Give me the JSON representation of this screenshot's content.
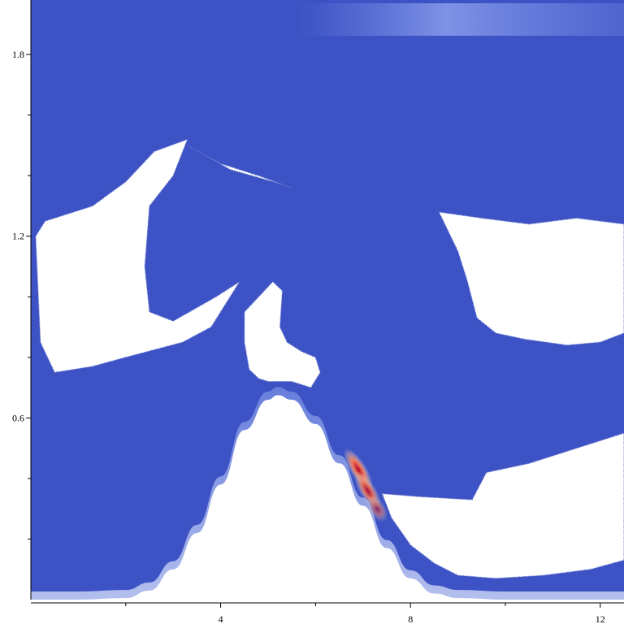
{
  "chart_data": {
    "type": "heatmap",
    "title": "",
    "xlabel": "",
    "ylabel": "",
    "xlim": [
      0.0,
      12.5
    ],
    "ylim": [
      0.0,
      1.98
    ],
    "x_ticks": [
      {
        "value": 4,
        "label": "4"
      },
      {
        "value": 8,
        "label": "8"
      },
      {
        "value": 12,
        "label": "12"
      }
    ],
    "x_minor_ticks": [
      2,
      6,
      10
    ],
    "y_ticks": [
      {
        "value": 0.6,
        "label": "0.6"
      },
      {
        "value": 1.2,
        "label": "1.2"
      },
      {
        "value": 1.8,
        "label": "1.8"
      }
    ],
    "y_minor_ticks": [
      0.2,
      0.4,
      0.8,
      1.0,
      1.4,
      1.6
    ],
    "colors": {
      "background_field": "#3d52c4",
      "low": "#3b4cc0",
      "mid": "#dddddd",
      "high": "#b40426",
      "void": "#ffffff"
    },
    "obstacle_profile": {
      "description_free": true,
      "x": [
        0,
        1,
        2,
        2.5,
        3,
        3.5,
        4,
        4.5,
        5,
        5.2,
        5.5,
        6,
        6.5,
        7,
        7.5,
        8,
        8.5,
        9,
        10,
        11,
        12,
        12.5
      ],
      "y": [
        0.0,
        0.0,
        0.005,
        0.03,
        0.1,
        0.22,
        0.38,
        0.56,
        0.66,
        0.675,
        0.66,
        0.58,
        0.45,
        0.31,
        0.17,
        0.07,
        0.02,
        0.005,
        0.0,
        0.0,
        0.0,
        0.0
      ]
    },
    "void_regions": [
      {
        "name": "left",
        "polygon": [
          [
            0.1,
            1.2
          ],
          [
            0.3,
            1.25
          ],
          [
            1.3,
            1.3
          ],
          [
            2.0,
            1.38
          ],
          [
            2.6,
            1.48
          ],
          [
            3.3,
            1.52
          ],
          [
            3.0,
            1.4
          ],
          [
            2.5,
            1.3
          ],
          [
            2.4,
            1.1
          ],
          [
            2.5,
            0.95
          ],
          [
            3.0,
            0.92
          ],
          [
            3.9,
            1.0
          ],
          [
            4.4,
            1.05
          ],
          [
            3.8,
            0.9
          ],
          [
            3.2,
            0.85
          ],
          [
            2.0,
            0.8
          ],
          [
            1.3,
            0.77
          ],
          [
            0.5,
            0.75
          ],
          [
            0.2,
            0.85
          ]
        ]
      },
      {
        "name": "mid-tongue",
        "polygon": [
          [
            3.3,
            1.5
          ],
          [
            4.2,
            1.42
          ],
          [
            5.1,
            1.38
          ],
          [
            5.5,
            1.36
          ],
          [
            4.8,
            1.4
          ],
          [
            4.0,
            1.44
          ]
        ]
      },
      {
        "name": "center",
        "polygon": [
          [
            4.5,
            0.95
          ],
          [
            4.8,
            1.0
          ],
          [
            5.1,
            1.05
          ],
          [
            5.3,
            1.02
          ],
          [
            5.25,
            0.9
          ],
          [
            5.4,
            0.85
          ],
          [
            5.7,
            0.82
          ],
          [
            6.0,
            0.8
          ],
          [
            6.1,
            0.75
          ],
          [
            5.9,
            0.7
          ],
          [
            5.5,
            0.72
          ],
          [
            5.0,
            0.72
          ],
          [
            4.8,
            0.73
          ],
          [
            4.6,
            0.76
          ],
          [
            4.5,
            0.85
          ]
        ]
      },
      {
        "name": "right-upper",
        "polygon": [
          [
            8.6,
            1.28
          ],
          [
            9.5,
            1.26
          ],
          [
            10.5,
            1.24
          ],
          [
            11.5,
            1.26
          ],
          [
            12.5,
            1.24
          ],
          [
            12.5,
            0.88
          ],
          [
            12.0,
            0.85
          ],
          [
            11.3,
            0.84
          ],
          [
            10.4,
            0.86
          ],
          [
            9.8,
            0.88
          ],
          [
            9.4,
            0.93
          ],
          [
            9.2,
            1.05
          ],
          [
            9.0,
            1.15
          ]
        ]
      },
      {
        "name": "right-lower",
        "polygon": [
          [
            7.4,
            0.35
          ],
          [
            8.2,
            0.34
          ],
          [
            9.3,
            0.33
          ],
          [
            9.6,
            0.42
          ],
          [
            10.5,
            0.45
          ],
          [
            11.5,
            0.5
          ],
          [
            12.5,
            0.55
          ],
          [
            12.5,
            0.13
          ],
          [
            11.8,
            0.1
          ],
          [
            10.8,
            0.08
          ],
          [
            9.8,
            0.07
          ],
          [
            9.0,
            0.08
          ],
          [
            8.5,
            0.12
          ],
          [
            8.0,
            0.18
          ],
          [
            7.6,
            0.27
          ]
        ]
      }
    ],
    "hotspots": [
      {
        "x": 6.9,
        "y": 0.43,
        "level": 1.0
      },
      {
        "x": 7.1,
        "y": 0.36,
        "level": 0.9
      },
      {
        "x": 7.3,
        "y": 0.3,
        "level": 0.6
      }
    ],
    "grid": false,
    "legend": "none"
  }
}
